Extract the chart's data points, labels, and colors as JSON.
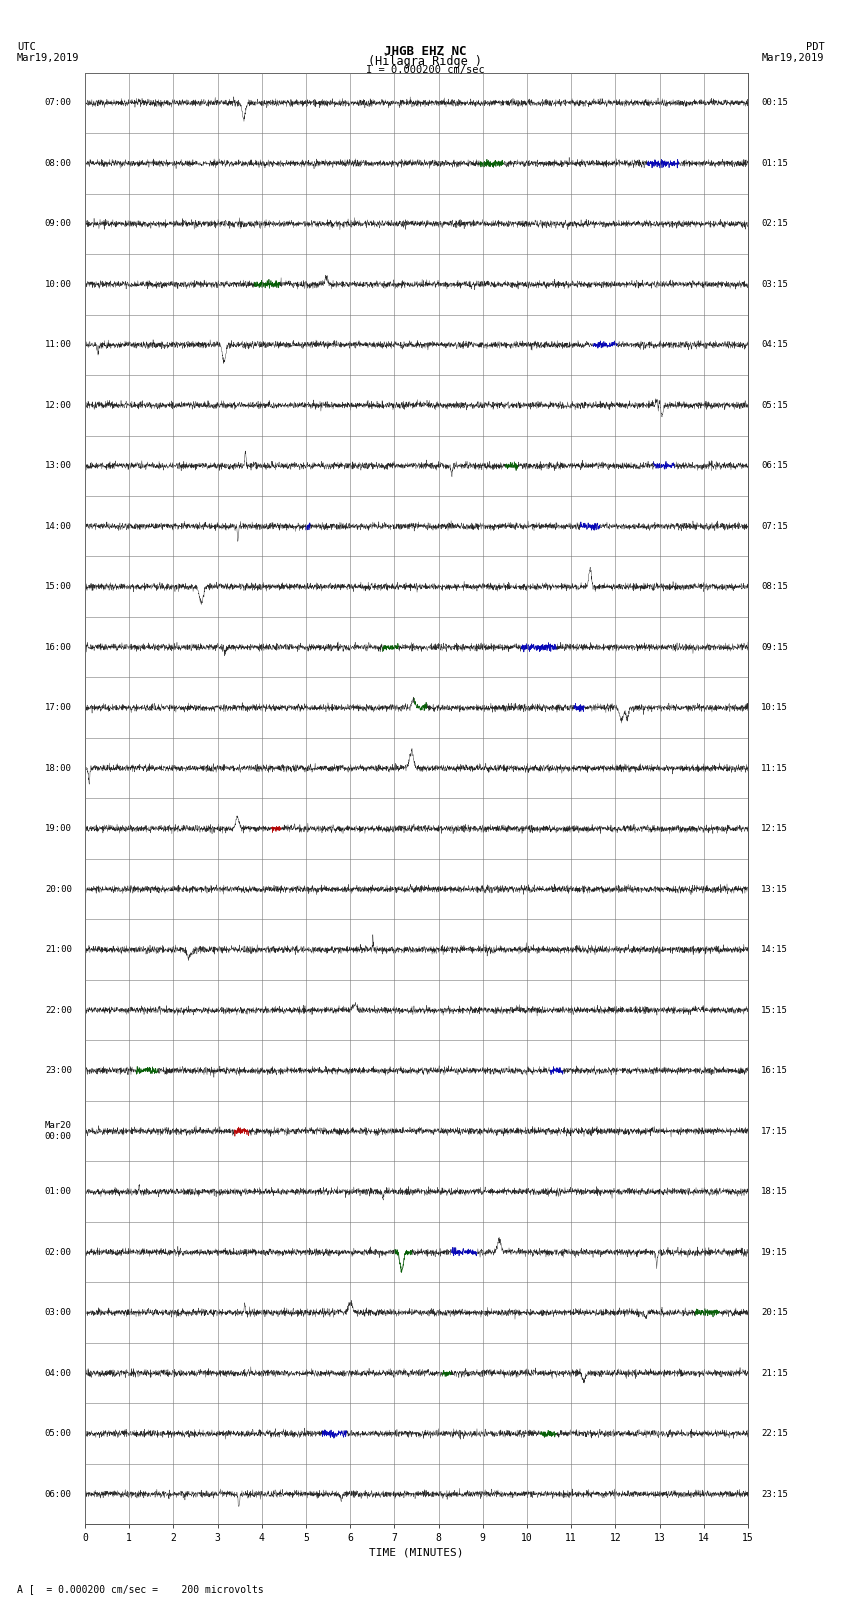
{
  "title_line1": "JHGB EHZ NC",
  "title_line2": "(Hilagra Ridge )",
  "title_line3": "I = 0.000200 cm/sec",
  "left_label_top": "UTC",
  "left_label_date": "Mar19,2019",
  "right_label_top": "PDT",
  "right_label_date": "Mar19,2019",
  "bottom_xlabel": "TIME (MINUTES)",
  "bottom_note": "A [  = 0.000200 cm/sec =    200 microvolts",
  "utc_times": [
    "07:00",
    "08:00",
    "09:00",
    "10:00",
    "11:00",
    "12:00",
    "13:00",
    "14:00",
    "15:00",
    "16:00",
    "17:00",
    "18:00",
    "19:00",
    "20:00",
    "21:00",
    "22:00",
    "23:00",
    "Mar20\n00:00",
    "01:00",
    "02:00",
    "03:00",
    "04:00",
    "05:00",
    "06:00"
  ],
  "pdt_times": [
    "00:15",
    "01:15",
    "02:15",
    "03:15",
    "04:15",
    "05:15",
    "06:15",
    "07:15",
    "08:15",
    "09:15",
    "10:15",
    "11:15",
    "12:15",
    "13:15",
    "14:15",
    "15:15",
    "16:15",
    "17:15",
    "18:15",
    "19:15",
    "20:15",
    "21:15",
    "22:15",
    "23:15"
  ],
  "n_rows": 24,
  "minutes_per_row": 15,
  "xmin": 0,
  "xmax": 15,
  "background_color": "#ffffff",
  "grid_color": "#888888",
  "trace_color_normal": "#111111",
  "noise_amplitude": 0.06,
  "fig_width": 8.5,
  "fig_height": 16.13,
  "dpi": 100
}
